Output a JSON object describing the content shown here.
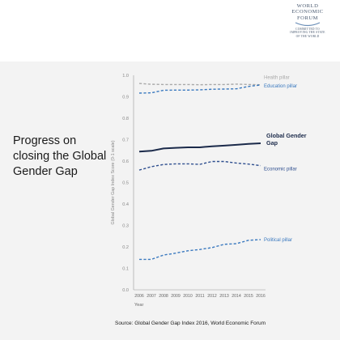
{
  "logo": {
    "lines": [
      "WORLD",
      "ECONOMIC",
      "FORUM"
    ],
    "tagline": [
      "COMMITTED TO",
      "IMPROVING THE STATE",
      "OF THE WORLD"
    ]
  },
  "headline": "Progress on closing the Global Gender Gap",
  "source": "Source:  Global Gender Gap Index 2016, World Economic Forum",
  "colors": {
    "health": "#a9a9a9",
    "education": "#3a79bf",
    "overall": "#1b2a4a",
    "economic": "#2f4f8f",
    "political": "#3a79bf",
    "axis_text": "#888888",
    "background_band": "#f3f3f3"
  },
  "chart_data": {
    "type": "line",
    "xlabel": "Year",
    "ylabel": "Global Gender Gap Index Score (0-1 scale)",
    "x": [
      "2006",
      "2007",
      "2008",
      "2009",
      "2010",
      "2011",
      "2012",
      "2013",
      "2014",
      "2015",
      "2016"
    ],
    "ylim": [
      0,
      1
    ],
    "yticks": [
      "0.0",
      "0.1",
      "0.2",
      "0.3",
      "0.4",
      "0.5",
      "0.6",
      "0.7",
      "0.8",
      "0.9",
      "1.0"
    ],
    "grid": false,
    "series": [
      {
        "name": "Health pillar",
        "color_key": "health",
        "style": "dashed",
        "values": [
          0.962,
          0.958,
          0.957,
          0.957,
          0.957,
          0.956,
          0.957,
          0.957,
          0.959,
          0.957,
          0.956
        ]
      },
      {
        "name": "Education pillar",
        "color_key": "education",
        "style": "dashed",
        "values": [
          0.917,
          0.918,
          0.93,
          0.931,
          0.931,
          0.932,
          0.935,
          0.936,
          0.937,
          0.948,
          0.955
        ]
      },
      {
        "name": "Global Gender Gap",
        "color_key": "overall",
        "style": "solid",
        "bold": true,
        "values": [
          0.644,
          0.648,
          0.659,
          0.662,
          0.664,
          0.664,
          0.669,
          0.672,
          0.676,
          0.68,
          0.683
        ]
      },
      {
        "name": "Economic pillar",
        "color_key": "economic",
        "style": "dashed",
        "values": [
          0.558,
          0.574,
          0.584,
          0.587,
          0.587,
          0.585,
          0.598,
          0.598,
          0.591,
          0.586,
          0.579
        ]
      },
      {
        "name": "Political pillar",
        "color_key": "political",
        "style": "dashed",
        "values": [
          0.142,
          0.142,
          0.162,
          0.171,
          0.182,
          0.188,
          0.197,
          0.212,
          0.215,
          0.231,
          0.234
        ]
      }
    ]
  }
}
